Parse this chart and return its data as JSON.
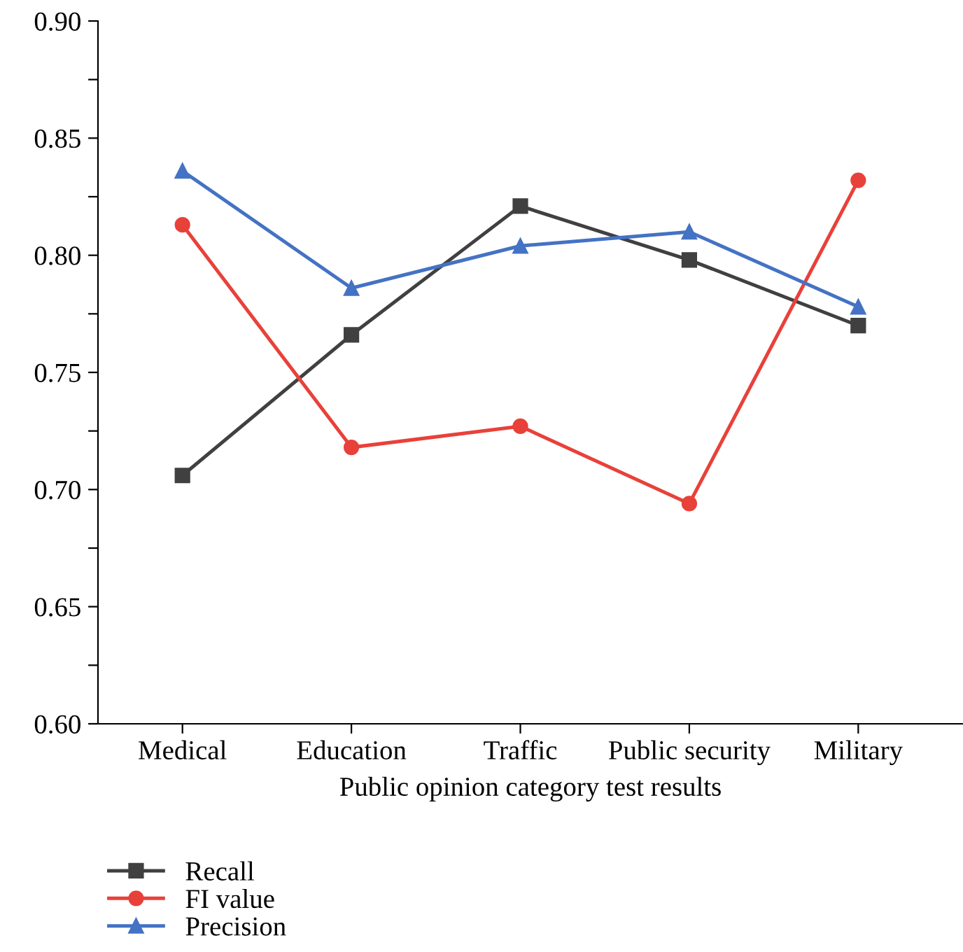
{
  "chart_data": {
    "type": "line",
    "xlabel": "Public opinion category test results",
    "categories": [
      "Medical",
      "Education",
      "Traffic",
      "Public security",
      "Military"
    ],
    "series": [
      {
        "name": "Recall",
        "color": "#404040",
        "marker": "square",
        "values": [
          0.706,
          0.766,
          0.821,
          0.798,
          0.77
        ]
      },
      {
        "name": "FI value",
        "color": "#e8413a",
        "marker": "circle",
        "values": [
          0.813,
          0.718,
          0.727,
          0.694,
          0.832
        ]
      },
      {
        "name": "Precision",
        "color": "#4472c4",
        "marker": "triangle",
        "values": [
          0.836,
          0.786,
          0.804,
          0.81,
          0.778
        ]
      }
    ],
    "ylim": [
      0.6,
      0.9
    ],
    "yticks": [
      {
        "value": 0.6,
        "label": "0.60"
      },
      {
        "value": 0.625,
        "label": null
      },
      {
        "value": 0.65,
        "label": "0.65"
      },
      {
        "value": 0.675,
        "label": null
      },
      {
        "value": 0.7,
        "label": "0.70"
      },
      {
        "value": 0.725,
        "label": null
      },
      {
        "value": 0.75,
        "label": "0.75"
      },
      {
        "value": 0.775,
        "label": null
      },
      {
        "value": 0.8,
        "label": "0.80"
      },
      {
        "value": 0.825,
        "label": null
      },
      {
        "value": 0.85,
        "label": "0.85"
      },
      {
        "value": 0.875,
        "label": null
      },
      {
        "value": 0.9,
        "label": "0.90"
      }
    ],
    "grid": false,
    "legend": "bottom left",
    "line_style": "solid"
  }
}
